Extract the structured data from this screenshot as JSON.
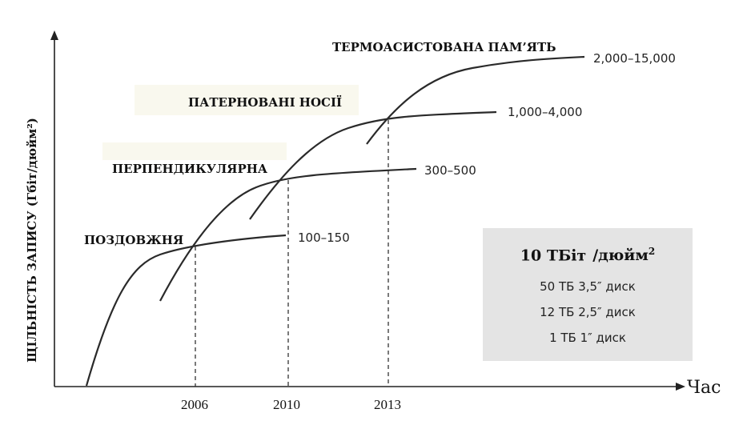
{
  "chart_data": {
    "type": "line",
    "xlabel": "Час",
    "ylabel": "ЩІЛЬНІСТЬ ЗАПИСУ (Гбіт/дюйм²)",
    "x_ticks": [
      "2006",
      "2010",
      "2013"
    ],
    "series": [
      {
        "name": "ПОЗДОВЖНЯ",
        "value_label": "100–150"
      },
      {
        "name": "ПЕРПЕНДИКУЛЯРНА",
        "value_label": "300–500"
      },
      {
        "name": "ПАТЕРНОВАНІ НОСІЇ",
        "value_label": "1,000–4,000"
      },
      {
        "name": "ТЕРМОАСИСТОВАНА ПАМ’ЯТЬ",
        "value_label": "2,000–15,000"
      }
    ],
    "crossovers": [
      "2006",
      "2010",
      "2013"
    ],
    "grid": false
  },
  "info_box": {
    "title_value": "10 ТБіт",
    "title_unit": "/дюйм",
    "title_sup": "2",
    "lines": [
      "50 ТБ 3,5″ диск",
      "12 ТБ 2,5″ диск",
      "1 ТБ 1″ диск"
    ]
  }
}
